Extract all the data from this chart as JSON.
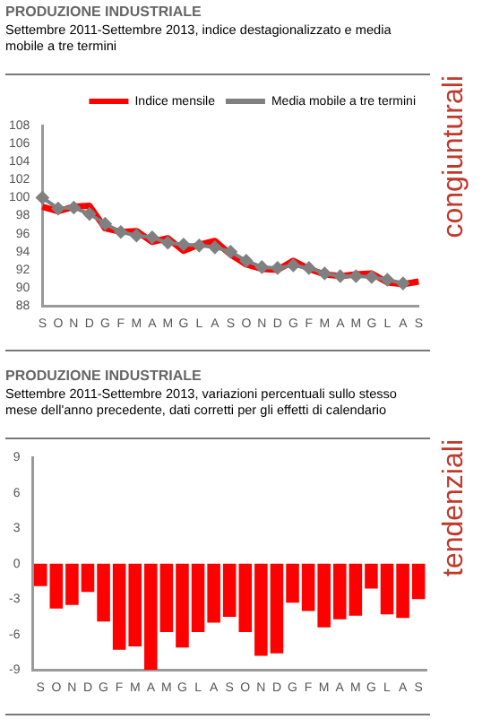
{
  "chart_data": [
    {
      "type": "line",
      "title": "PRODUZIONE INDUSTRIALE",
      "subtitle": "Settembre 2011-Settembre 2013, indice destagionalizzato e media mobile a tre termini",
      "annotations": [
        "congiunturali"
      ],
      "categories": [
        "S",
        "O",
        "N",
        "D",
        "G",
        "F",
        "M",
        "A",
        "M",
        "G",
        "L",
        "A",
        "S",
        "O",
        "N",
        "D",
        "G",
        "F",
        "M",
        "A",
        "M",
        "G",
        "L",
        "A",
        "S"
      ],
      "series": [
        {
          "name": "Indice mensile",
          "color": "#ff0000",
          "marker": "none",
          "values": [
            99.0,
            98.5,
            99.0,
            99.1,
            96.6,
            96.2,
            96.3,
            95.1,
            95.5,
            94.1,
            94.8,
            95.2,
            93.7,
            92.6,
            92.1,
            92.0,
            93.0,
            92.1,
            91.5,
            91.3,
            91.5,
            91.6,
            90.6,
            90.4,
            90.7
          ]
        },
        {
          "name": "Media mobile a tre termini",
          "color": "#808080",
          "marker": "diamond",
          "values": [
            100.0,
            98.8,
            98.9,
            98.2,
            97.1,
            96.2,
            95.8,
            95.6,
            95.0,
            94.8,
            94.7,
            94.5,
            94.0,
            93.0,
            92.3,
            92.2,
            92.5,
            92.2,
            91.6,
            91.3,
            91.3,
            91.2,
            90.9,
            90.5,
            null
          ]
        }
      ],
      "ylim": [
        88,
        108
      ],
      "yticks": [
        88,
        90,
        92,
        94,
        96,
        98,
        100,
        102,
        104,
        106,
        108
      ],
      "grid": false,
      "legend": "top",
      "line_style": "solid"
    },
    {
      "type": "bar",
      "title": "PRODUZIONE INDUSTRIALE",
      "subtitle": "Settembre 2011-Settembre 2013, variazioni percentuali sullo stesso mese dell'anno precedente, dati corretti per gli effetti di calendario",
      "annotations": [
        "tendenziali"
      ],
      "categories": [
        "S",
        "O",
        "N",
        "D",
        "G",
        "F",
        "M",
        "A",
        "M",
        "G",
        "L",
        "A",
        "S",
        "O",
        "N",
        "D",
        "G",
        "F",
        "M",
        "A",
        "M",
        "G",
        "L",
        "A",
        "S"
      ],
      "values": [
        -1.9,
        -3.8,
        -3.5,
        -2.4,
        -4.9,
        -7.3,
        -7.0,
        -9.0,
        -5.8,
        -7.1,
        -5.8,
        -5.0,
        -4.5,
        -5.8,
        -7.8,
        -7.6,
        -3.3,
        -4.0,
        -5.4,
        -4.7,
        -4.4,
        -2.1,
        -4.3,
        -4.6,
        -3.0
      ],
      "color": "#ff0000",
      "ylim": [
        -9,
        9
      ],
      "yticks": [
        -9,
        -6,
        -3,
        0,
        3,
        6,
        9
      ],
      "grid": false
    }
  ]
}
